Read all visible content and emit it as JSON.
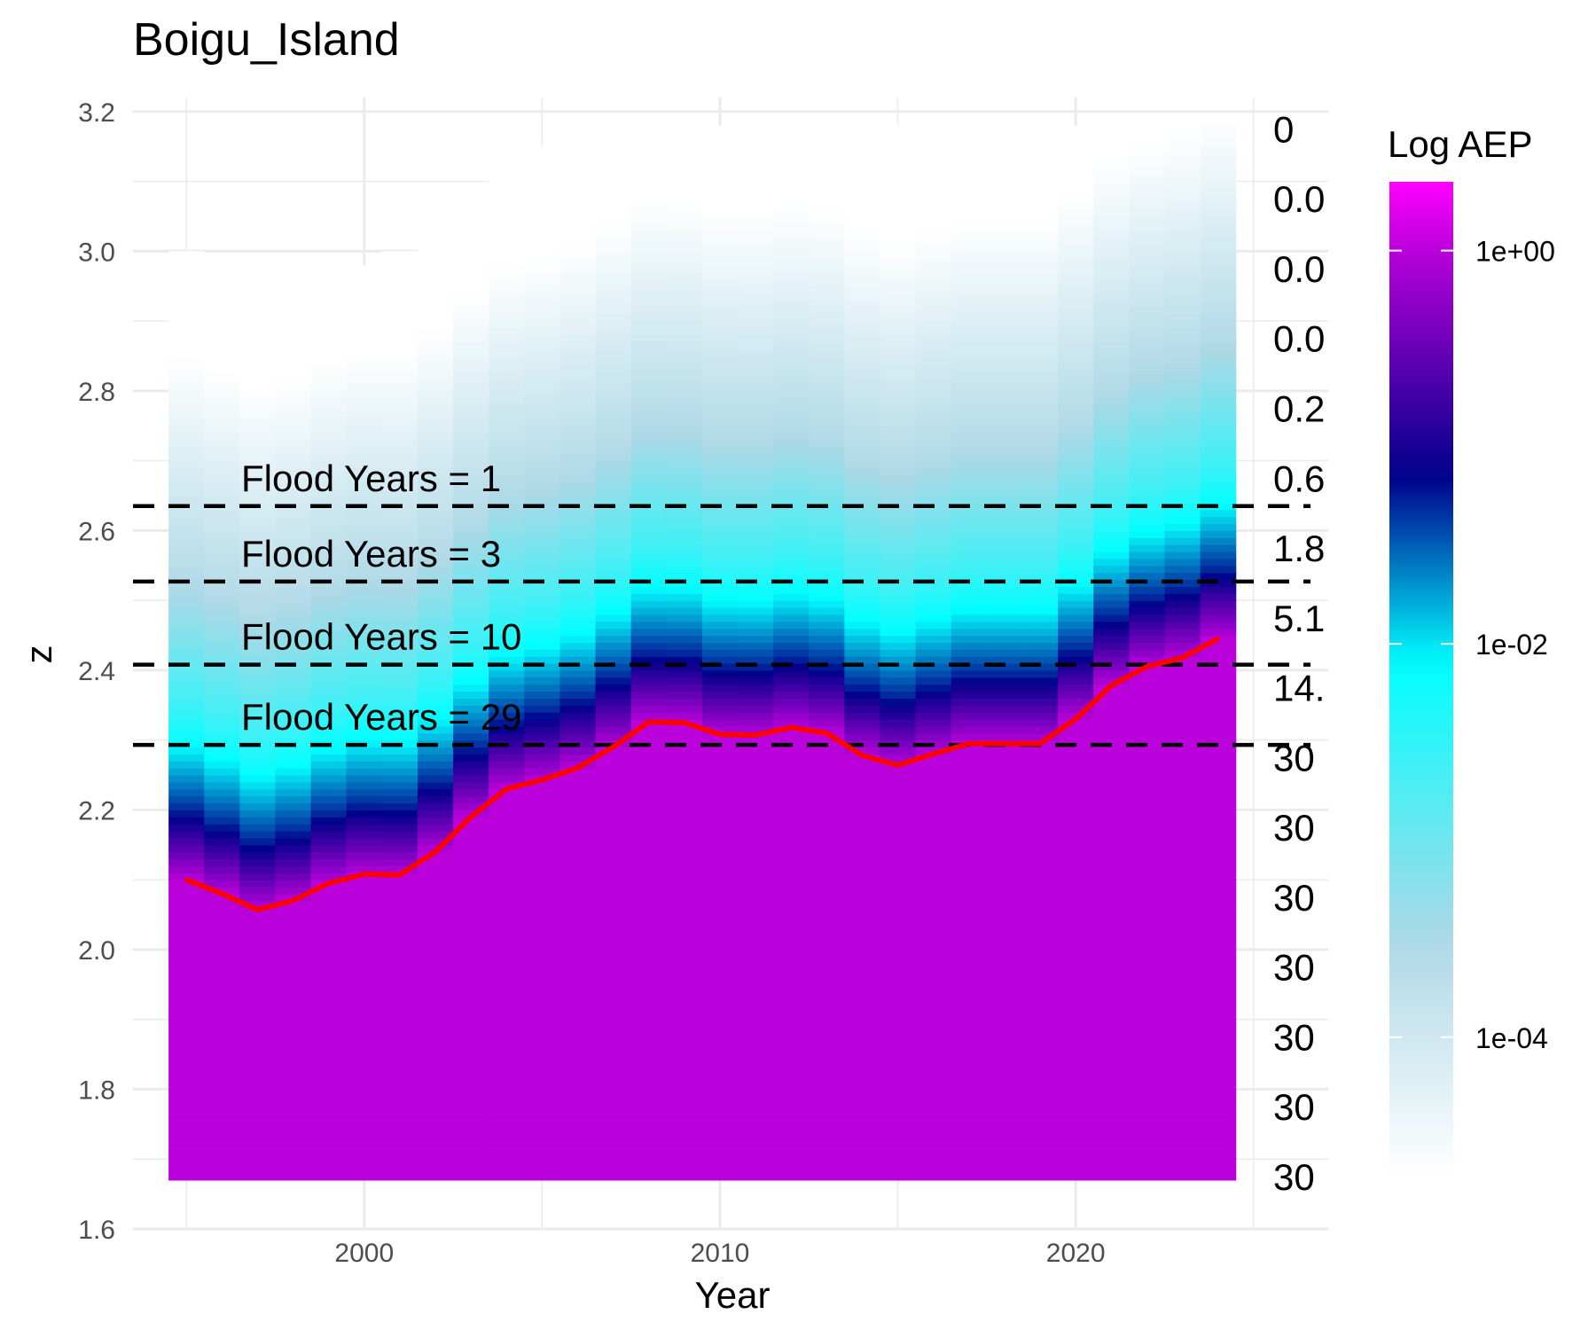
{
  "chart_data": {
    "type": "heatmap",
    "title": "Boigu_Island",
    "xlabel": "Year",
    "ylabel": "z",
    "xlim": [
      1993.5,
      2027.1
    ],
    "ylim": [
      1.6,
      3.22
    ],
    "x_ticks": [
      2000,
      2010,
      2020
    ],
    "y_ticks": [
      1.6,
      1.8,
      2.0,
      2.2,
      2.4,
      2.6,
      2.8,
      3.0,
      3.2
    ],
    "y_tick_labels": [
      "1.6",
      "1.8",
      "2.0",
      "2.2",
      "2.4",
      "2.6",
      "2.8",
      "3.0",
      "3.2"
    ],
    "grid": true,
    "heatmap": {
      "years": [
        1995,
        1996,
        1997,
        1998,
        1999,
        2000,
        2001,
        2002,
        2003,
        2004,
        2005,
        2006,
        2007,
        2008,
        2009,
        2010,
        2011,
        2012,
        2013,
        2014,
        2015,
        2016,
        2017,
        2018,
        2019,
        2020,
        2021,
        2022,
        2023,
        2024
      ],
      "z_bottom": 1.67,
      "z_top_by_year": [
        3.0,
        2.98,
        2.97,
        2.96,
        2.97,
        2.98,
        3.0,
        3.03,
        3.08,
        3.12,
        3.15,
        3.17,
        3.18,
        3.18,
        3.18,
        3.18,
        3.18,
        3.18,
        3.18,
        3.18,
        3.18,
        3.18,
        3.18,
        3.18,
        3.18,
        3.18,
        3.18,
        3.18,
        3.18,
        3.18
      ],
      "anchor_log_aep": [
        0.0,
        -1.3,
        -2.6,
        -3.6,
        -4.7
      ],
      "anchor_offset_from_red_line": [
        0.0,
        0.1,
        0.25,
        0.43,
        0.75
      ],
      "note": "log10 AEP = piecewise-linear in (z - red line value) through the anchors"
    },
    "series": [
      {
        "values": [
          2.1,
          2.08,
          2.057,
          2.07,
          2.095,
          2.108,
          2.107,
          2.14,
          2.19,
          2.23,
          2.243,
          2.26,
          2.29,
          2.326,
          2.325,
          2.308,
          2.307,
          2.318,
          2.31,
          2.278,
          2.264,
          2.28,
          2.295,
          2.295,
          2.295,
          2.33,
          2.378,
          2.405,
          2.418,
          2.445
        ],
        "color": "#ff0000"
      }
    ],
    "flood_lines": [
      {
        "label": "Flood Years = 1",
        "z": 2.635
      },
      {
        "label": "Flood Years = 3",
        "z": 2.527
      },
      {
        "label": "Flood Years = 10",
        "z": 2.408
      },
      {
        "label": "Flood Years = 29",
        "z": 2.293
      }
    ],
    "right_labels": {
      "values": [
        "0",
        "0.0",
        "0.0",
        "0.0",
        "0.2",
        "0.6",
        "1.8",
        "5.1",
        "14.",
        "30",
        "30",
        "30",
        "30",
        "30",
        "30",
        "30"
      ],
      "z": [
        3.175,
        3.075,
        2.975,
        2.875,
        2.775,
        2.675,
        2.575,
        2.475,
        2.375,
        2.275,
        2.175,
        2.075,
        1.975,
        1.875,
        1.775,
        1.675
      ]
    },
    "legend": {
      "title": "Log AEP",
      "ticks": [
        "1e+00",
        "1e-02",
        "1e-04"
      ],
      "tick_log_values": [
        0,
        -2,
        -4
      ],
      "range_log": [
        -4.7,
        0.35
      ],
      "placement": "right",
      "colors": [
        "#ffffff",
        "#add8e6",
        "#00ffff",
        "#00008b",
        "#b000d6",
        "#ff00ff"
      ],
      "color_stops_log": [
        -4.7,
        -3.5,
        -2.1,
        -1.15,
        -0.05,
        0.35
      ]
    }
  }
}
